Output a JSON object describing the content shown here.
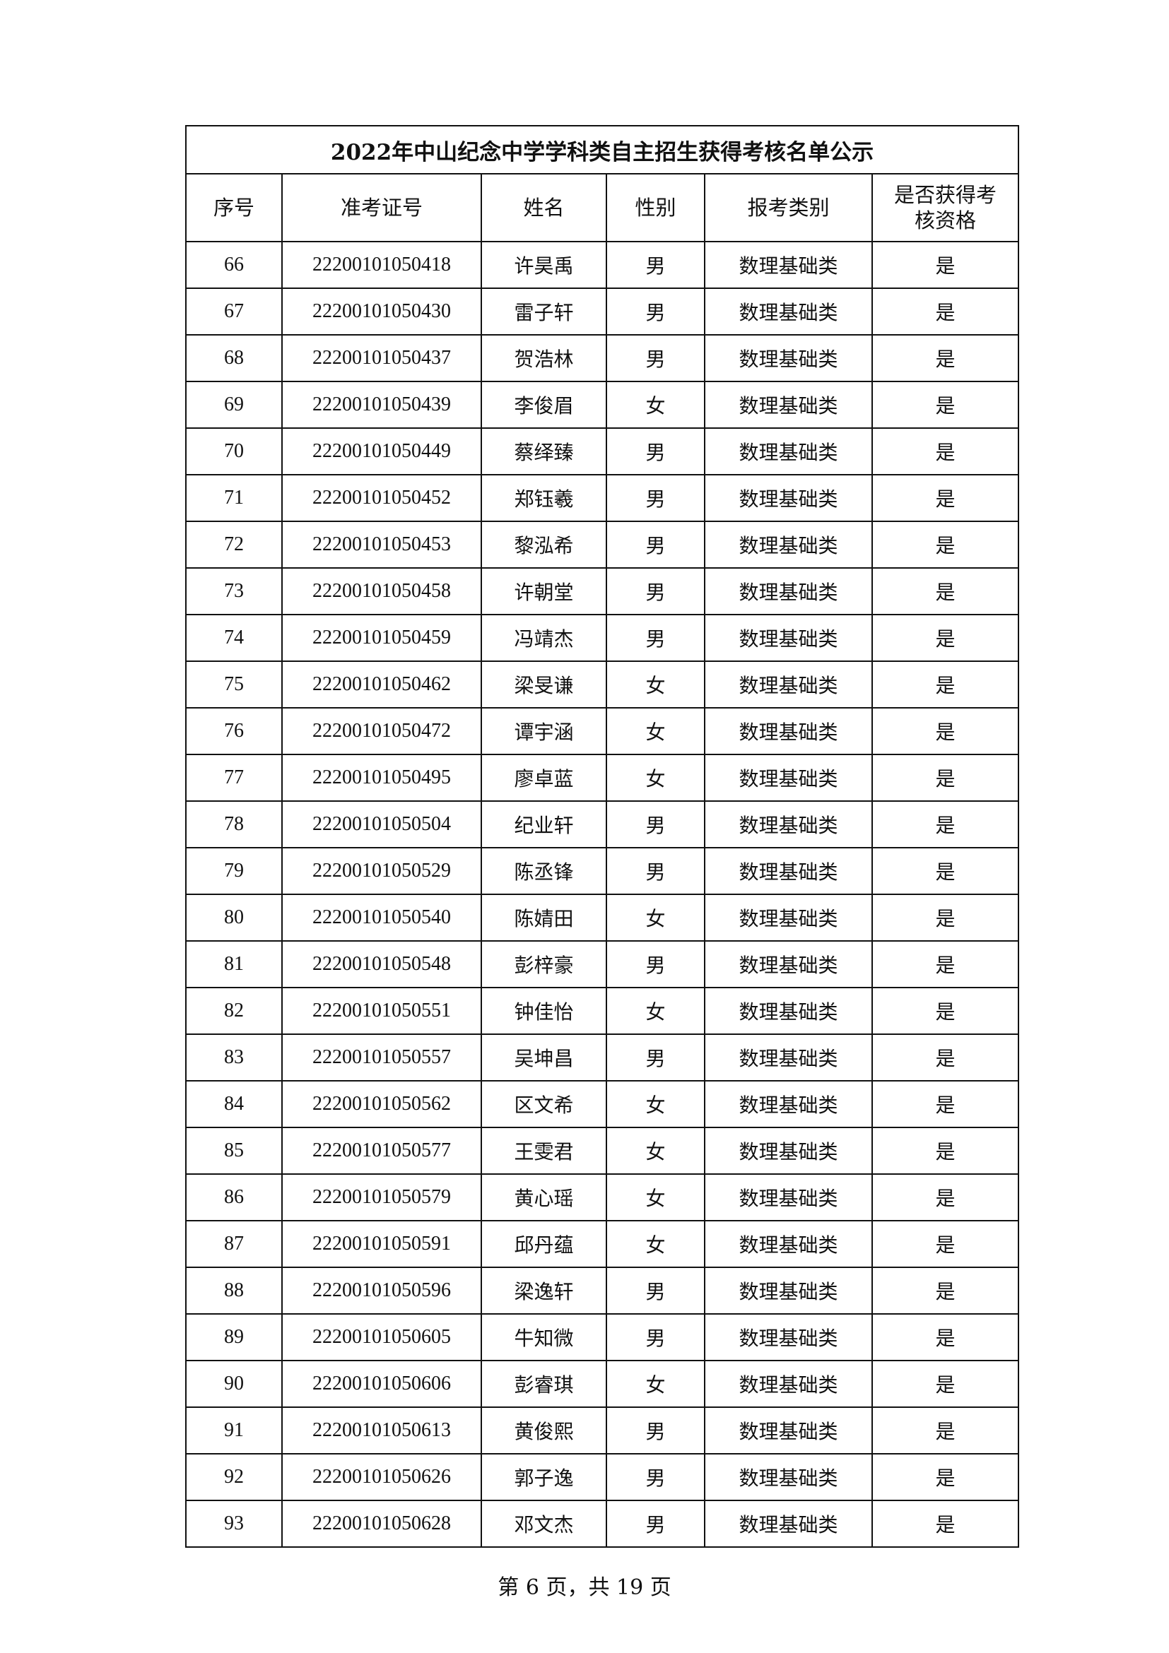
{
  "title": "2022年中山纪念中学学科类自主招生获得考核名单公示",
  "headers": [
    "序号",
    "准考证号",
    "姓名",
    "性别",
    "报考类别",
    "是否获得考核资格"
  ],
  "rows": [
    [
      "66",
      "22200101050418",
      "许昊禹",
      "男",
      "数理基础类",
      "是"
    ],
    [
      "67",
      "22200101050430",
      "雷子轩",
      "男",
      "数理基础类",
      "是"
    ],
    [
      "68",
      "22200101050437",
      "贺浩林",
      "男",
      "数理基础类",
      "是"
    ],
    [
      "69",
      "22200101050439",
      "李俊眉",
      "女",
      "数理基础类",
      "是"
    ],
    [
      "70",
      "22200101050449",
      "蔡绎臻",
      "男",
      "数理基础类",
      "是"
    ],
    [
      "71",
      "22200101050452",
      "郑钰羲",
      "男",
      "数理基础类",
      "是"
    ],
    [
      "72",
      "22200101050453",
      "黎泓希",
      "男",
      "数理基础类",
      "是"
    ],
    [
      "73",
      "22200101050458",
      "许朝堂",
      "男",
      "数理基础类",
      "是"
    ],
    [
      "74",
      "22200101050459",
      "冯靖杰",
      "男",
      "数理基础类",
      "是"
    ],
    [
      "75",
      "22200101050462",
      "梁旻谦",
      "女",
      "数理基础类",
      "是"
    ],
    [
      "76",
      "22200101050472",
      "谭宇涵",
      "女",
      "数理基础类",
      "是"
    ],
    [
      "77",
      "22200101050495",
      "廖卓蓝",
      "女",
      "数理基础类",
      "是"
    ],
    [
      "78",
      "22200101050504",
      "纪业轩",
      "男",
      "数理基础类",
      "是"
    ],
    [
      "79",
      "22200101050529",
      "陈丞锋",
      "男",
      "数理基础类",
      "是"
    ],
    [
      "80",
      "22200101050540",
      "陈婧田",
      "女",
      "数理基础类",
      "是"
    ],
    [
      "81",
      "22200101050548",
      "彭梓豪",
      "男",
      "数理基础类",
      "是"
    ],
    [
      "82",
      "22200101050551",
      "钟佳怡",
      "女",
      "数理基础类",
      "是"
    ],
    [
      "83",
      "22200101050557",
      "吴坤昌",
      "男",
      "数理基础类",
      "是"
    ],
    [
      "84",
      "22200101050562",
      "区文希",
      "女",
      "数理基础类",
      "是"
    ],
    [
      "85",
      "22200101050577",
      "王雯君",
      "女",
      "数理基础类",
      "是"
    ],
    [
      "86",
      "22200101050579",
      "黄心瑶",
      "女",
      "数理基础类",
      "是"
    ],
    [
      "87",
      "22200101050591",
      "邱丹蕴",
      "女",
      "数理基础类",
      "是"
    ],
    [
      "88",
      "22200101050596",
      "梁逸轩",
      "男",
      "数理基础类",
      "是"
    ],
    [
      "89",
      "22200101050605",
      "牛知微",
      "男",
      "数理基础类",
      "是"
    ],
    [
      "90",
      "22200101050606",
      "彭睿琪",
      "女",
      "数理基础类",
      "是"
    ],
    [
      "91",
      "22200101050613",
      "黄俊熙",
      "男",
      "数理基础类",
      "是"
    ],
    [
      "92",
      "22200101050626",
      "郭子逸",
      "男",
      "数理基础类",
      "是"
    ],
    [
      "93",
      "22200101050628",
      "邓文杰",
      "男",
      "数理基础类",
      "是"
    ]
  ],
  "footer": "第 6 页，共 19 页"
}
